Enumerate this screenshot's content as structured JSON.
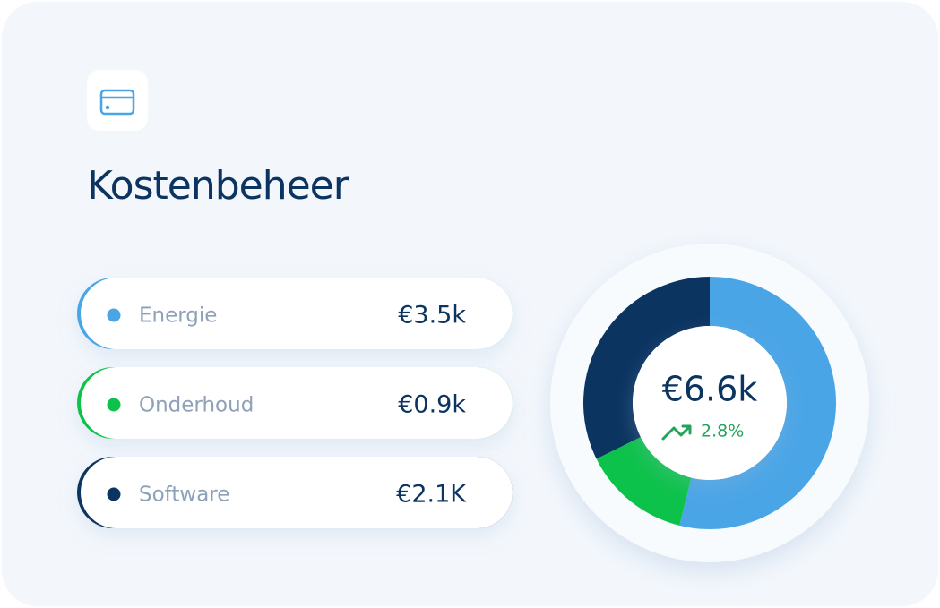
{
  "chart_data": {
    "type": "donut",
    "title": "Kostenbeheer",
    "categories": [
      "Energie",
      "Onderhoud",
      "Software"
    ],
    "values": [
      3.5,
      0.9,
      2.1
    ],
    "value_labels": [
      "€3.5k",
      "€0.9k",
      "€2.1K"
    ],
    "colors": [
      "#4aa5e6",
      "#0dc24a",
      "#0c3461"
    ],
    "total_label": "€6.6k",
    "change_label": "2.8%"
  }
}
